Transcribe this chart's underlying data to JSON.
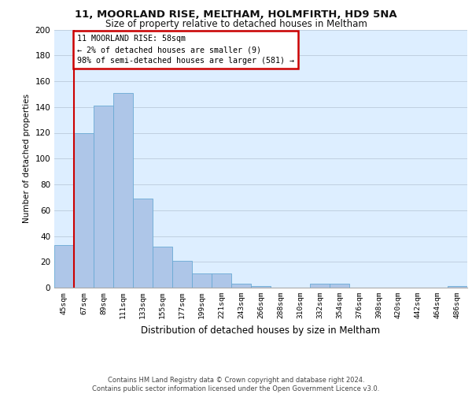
{
  "title1": "11, MOORLAND RISE, MELTHAM, HOLMFIRTH, HD9 5NA",
  "title2": "Size of property relative to detached houses in Meltham",
  "xlabel": "Distribution of detached houses by size in Meltham",
  "ylabel": "Number of detached properties",
  "bar_labels": [
    "45sqm",
    "67sqm",
    "89sqm",
    "111sqm",
    "133sqm",
    "155sqm",
    "177sqm",
    "199sqm",
    "221sqm",
    "243sqm",
    "266sqm",
    "288sqm",
    "310sqm",
    "332sqm",
    "354sqm",
    "376sqm",
    "398sqm",
    "420sqm",
    "442sqm",
    "464sqm",
    "486sqm"
  ],
  "bar_values": [
    33,
    120,
    141,
    151,
    69,
    32,
    21,
    11,
    11,
    3,
    1,
    0,
    0,
    3,
    3,
    0,
    0,
    0,
    0,
    0,
    1
  ],
  "bar_color": "#aec6e8",
  "bar_edge_color": "#6aaad4",
  "annotation_box_color": "#ffffff",
  "annotation_border_color": "#cc0000",
  "annotation_line1": "11 MOORLAND RISE: 58sqm",
  "annotation_line2": "← 2% of detached houses are smaller (9)",
  "annotation_line3": "98% of semi-detached houses are larger (581) →",
  "marker_line_color": "#cc0000",
  "marker_bar_index": 1,
  "ylim": [
    0,
    200
  ],
  "yticks": [
    0,
    20,
    40,
    60,
    80,
    100,
    120,
    140,
    160,
    180,
    200
  ],
  "grid_color": "#c8d8e8",
  "bg_color": "#ddeeff",
  "footnote1": "Contains HM Land Registry data © Crown copyright and database right 2024.",
  "footnote2": "Contains public sector information licensed under the Open Government Licence v3.0."
}
